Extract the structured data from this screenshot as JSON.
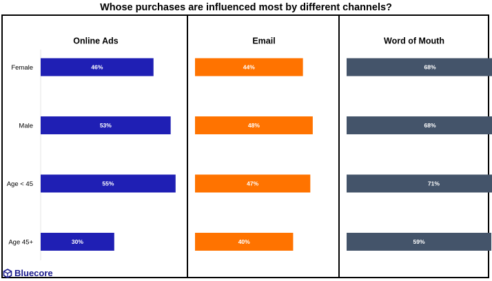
{
  "chart_data": {
    "type": "bar",
    "orientation": "horizontal",
    "title": "Whose purchases are influenced most by different channels?",
    "categories": [
      "Female",
      "Male",
      "Age < 45",
      "Age 45+"
    ],
    "value_format": "percent",
    "series": [
      {
        "name": "Online Ads",
        "color": "#1f1fb4",
        "values": [
          46,
          53,
          55,
          30
        ]
      },
      {
        "name": "Email",
        "color": "#ff7300",
        "values": [
          44,
          48,
          47,
          40
        ]
      },
      {
        "name": "Word of Mouth",
        "color": "#44546a",
        "values": [
          68,
          68,
          71,
          59
        ]
      }
    ],
    "axis_range": [
      0,
      100
    ],
    "grid": false,
    "legend": "none"
  },
  "brand": {
    "name": "Bluecore",
    "icon": "bluecore-hexagon-icon",
    "color": "#1a1a8c"
  }
}
